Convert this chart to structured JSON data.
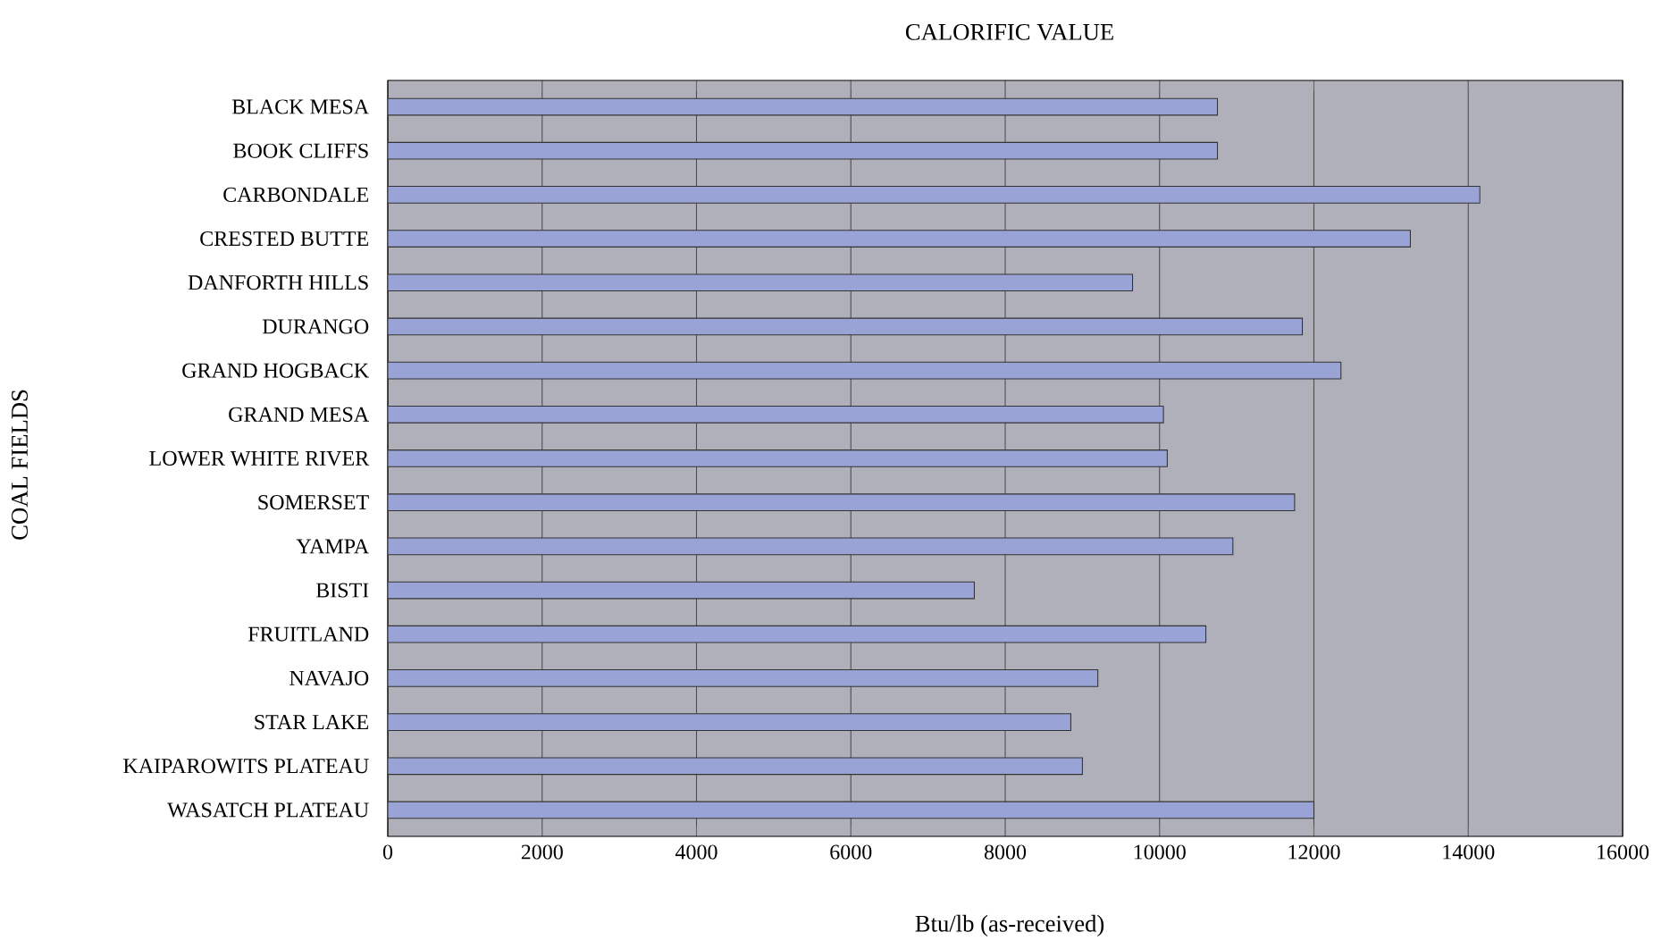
{
  "chart_data": {
    "type": "bar",
    "orientation": "horizontal",
    "title": "CALORIFIC VALUE",
    "xlabel": "Btu/lb (as-received)",
    "ylabel": "COAL FIELDS",
    "categories": [
      "BLACK MESA",
      "BOOK CLIFFS",
      "CARBONDALE",
      "CRESTED BUTTE",
      "DANFORTH HILLS",
      "DURANGO",
      "GRAND HOGBACK",
      "GRAND MESA",
      "LOWER WHITE RIVER",
      "SOMERSET",
      "YAMPA",
      "BISTI",
      "FRUITLAND",
      "NAVAJO",
      "STAR LAKE",
      "KAIPAROWITS PLATEAU",
      "WASATCH PLATEAU"
    ],
    "values": [
      10750,
      10750,
      14150,
      13250,
      9650,
      11850,
      12350,
      10050,
      10100,
      11750,
      10950,
      7600,
      10600,
      9200,
      8850,
      9000,
      12000
    ],
    "color": "#9aa3d6",
    "xlim": [
      0,
      16000
    ],
    "xticks": [
      0,
      2000,
      4000,
      6000,
      8000,
      10000,
      12000,
      14000,
      16000
    ],
    "grid": "x"
  }
}
